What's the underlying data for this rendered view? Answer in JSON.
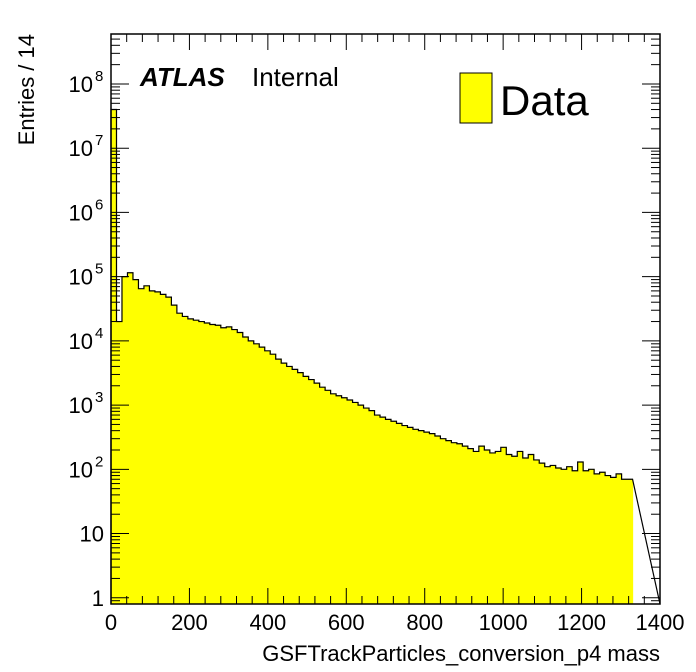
{
  "chart_data": {
    "type": "bar",
    "xlabel": "GSFTrackParticles_conversion_p4 mass",
    "ylabel": "Entries / 14",
    "xlim": [
      0,
      1400
    ],
    "ylim": [
      0.8,
      600000000
    ],
    "log_y": true,
    "bin_width": 14,
    "x_ticks": [
      {
        "value": 0,
        "label": "0"
      },
      {
        "value": 200,
        "label": "200"
      },
      {
        "value": 400,
        "label": "400"
      },
      {
        "value": 600,
        "label": "600"
      },
      {
        "value": 800,
        "label": "800"
      },
      {
        "value": 1000,
        "label": "1000"
      },
      {
        "value": 1200,
        "label": "1200"
      },
      {
        "value": 1400,
        "label": "1400"
      }
    ],
    "y_ticks": [
      {
        "value": 1,
        "label": "1",
        "sup": ""
      },
      {
        "value": 10,
        "label": "10",
        "sup": ""
      },
      {
        "value": 100,
        "label": "10",
        "sup": "2"
      },
      {
        "value": 1000,
        "label": "10",
        "sup": "3"
      },
      {
        "value": 10000,
        "label": "10",
        "sup": "4"
      },
      {
        "value": 100000,
        "label": "10",
        "sup": "5"
      },
      {
        "value": 1000000,
        "label": "10",
        "sup": "6"
      },
      {
        "value": 10000000,
        "label": "10",
        "sup": "7"
      },
      {
        "value": 100000000,
        "label": "10",
        "sup": "8"
      }
    ],
    "series": [
      {
        "name": "Data",
        "color": "#ffff00",
        "values": [
          40000000,
          20000,
          100000,
          115000,
          90000,
          65000,
          72000,
          60000,
          58000,
          53000,
          48000,
          36000,
          27000,
          24000,
          22000,
          21000,
          20000,
          19000,
          18000,
          17500,
          16000,
          16500,
          15000,
          13500,
          11500,
          10000,
          9000,
          8000,
          7000,
          6200,
          5200,
          4500,
          4000,
          3600,
          3200,
          2800,
          2500,
          2200,
          1900,
          1700,
          1500,
          1400,
          1300,
          1200,
          1100,
          1000,
          900,
          820,
          700,
          650,
          600,
          560,
          520,
          480,
          450,
          420,
          400,
          380,
          360,
          330,
          300,
          280,
          260,
          250,
          230,
          210,
          190,
          230,
          200,
          180,
          190,
          220,
          170,
          160,
          190,
          150,
          170,
          140,
          125,
          110,
          115,
          105,
          100,
          110,
          95,
          130,
          95,
          100,
          85,
          90,
          80,
          75,
          85,
          70,
          70
        ]
      }
    ],
    "annotations": {
      "atlas": "ATLAS",
      "status": "Internal"
    },
    "legend": {
      "position": "top-right",
      "entries": [
        {
          "label": "Data",
          "color": "#ffff00"
        }
      ]
    }
  }
}
